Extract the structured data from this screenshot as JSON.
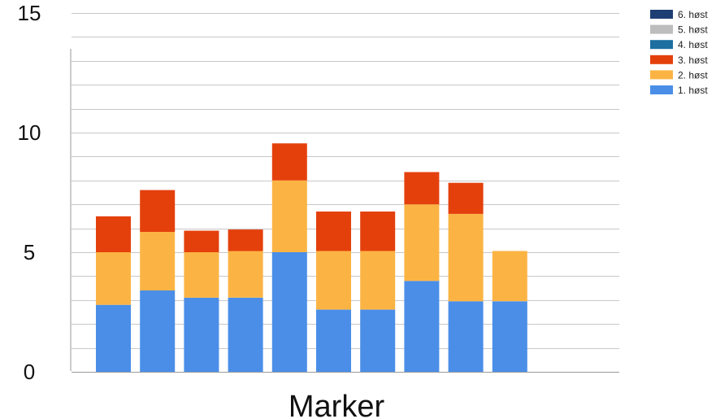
{
  "chart_data": {
    "type": "bar",
    "stacked": true,
    "xlabel": "Marker",
    "ylabel": "",
    "ylim": [
      0,
      15
    ],
    "yticks": [
      "0",
      "5",
      "10",
      "15"
    ],
    "grid": true,
    "legend_position": "top-right",
    "categories": [
      "",
      "",
      "",
      "",
      "",
      "",
      "",
      "",
      "",
      ""
    ],
    "series": [
      {
        "name": "1. høst",
        "color": "#4a8ee8",
        "values": [
          2.8,
          3.4,
          3.1,
          3.1,
          5.0,
          2.6,
          2.6,
          3.8,
          2.95,
          2.95
        ]
      },
      {
        "name": "2. høst",
        "color": "#fbb444",
        "values": [
          2.2,
          2.45,
          1.9,
          1.95,
          3.0,
          2.45,
          2.45,
          3.2,
          3.65,
          2.1
        ]
      },
      {
        "name": "3. høst",
        "color": "#e4400c",
        "values": [
          1.5,
          1.75,
          0.9,
          0.9,
          1.55,
          1.65,
          1.65,
          1.35,
          1.3,
          0
        ]
      },
      {
        "name": "4. høst",
        "color": "#1c6fa0",
        "values": [
          0,
          0,
          0,
          0,
          0,
          0,
          0,
          0,
          0,
          0
        ]
      },
      {
        "name": "5. høst",
        "color": "#bdbdbd",
        "values": [
          0,
          0,
          0,
          0,
          0,
          0,
          0,
          0,
          0,
          0
        ]
      },
      {
        "name": "6. høst",
        "color": "#1e3f73",
        "values": [
          0,
          0,
          0,
          0,
          0,
          0,
          0,
          0,
          0,
          0
        ]
      }
    ],
    "legend_order": [
      "6. høst",
      "5. høst",
      "4. høst",
      "3. høst",
      "2. høst",
      "1. høst"
    ]
  }
}
